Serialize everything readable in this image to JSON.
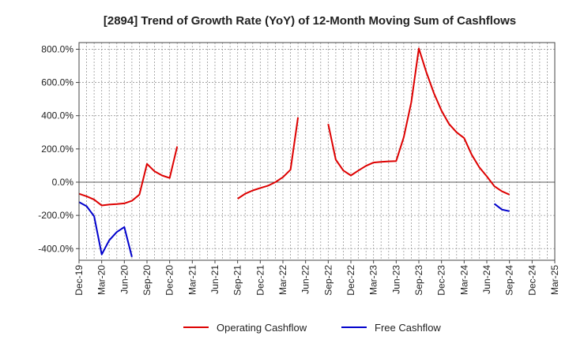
{
  "chart_data": {
    "type": "line",
    "title": "[2894]  Trend of Growth Rate (YoY) of 12-Month Moving Sum of Cashflows",
    "xlabel": "",
    "ylabel": "",
    "ylim": [
      -470,
      840
    ],
    "y_ticks": [
      -400,
      -200,
      0,
      200,
      400,
      600,
      800
    ],
    "y_tick_labels": [
      "-400.0%",
      "-200.0%",
      "0.0%",
      "200.0%",
      "400.0%",
      "600.0%",
      "800.0%"
    ],
    "x_ticks": [
      "Dec-19",
      "Mar-20",
      "Jun-20",
      "Sep-20",
      "Dec-20",
      "Mar-21",
      "Jun-21",
      "Sep-21",
      "Dec-21",
      "Mar-22",
      "Jun-22",
      "Sep-22",
      "Dec-22",
      "Mar-23",
      "Jun-23",
      "Sep-23",
      "Dec-23",
      "Mar-24",
      "Jun-24",
      "Sep-24",
      "Dec-24",
      "Mar-25"
    ],
    "grid": true,
    "legend_position": "bottom",
    "months": [
      "Dec-19",
      "Jan-20",
      "Feb-20",
      "Mar-20",
      "Apr-20",
      "May-20",
      "Jun-20",
      "Jul-20",
      "Aug-20",
      "Sep-20",
      "Oct-20",
      "Nov-20",
      "Dec-20",
      "Jan-21",
      "Feb-21",
      "Mar-21",
      "Apr-21",
      "May-21",
      "Jun-21",
      "Jul-21",
      "Aug-21",
      "Sep-21",
      "Oct-21",
      "Nov-21",
      "Dec-21",
      "Jan-22",
      "Feb-22",
      "Mar-22",
      "Apr-22",
      "May-22",
      "Jun-22",
      "Jul-22",
      "Aug-22",
      "Sep-22",
      "Oct-22",
      "Nov-22",
      "Dec-22",
      "Jan-23",
      "Feb-23",
      "Mar-23",
      "Apr-23",
      "May-23",
      "Jun-23",
      "Jul-23",
      "Aug-23",
      "Sep-23",
      "Oct-23",
      "Nov-23",
      "Dec-23",
      "Jan-24",
      "Feb-24",
      "Mar-24",
      "Apr-24",
      "May-24",
      "Jun-24",
      "Jul-24",
      "Aug-24",
      "Sep-24",
      "Oct-24",
      "Nov-24",
      "Dec-24",
      "Jan-25",
      "Feb-25",
      "Mar-25"
    ],
    "series": [
      {
        "name": "Operating Cashflow",
        "color": "#dd0000",
        "values": [
          -70,
          -85,
          -105,
          -140,
          -135,
          -132,
          -128,
          -112,
          -75,
          110,
          65,
          40,
          25,
          215,
          null,
          null,
          null,
          null,
          null,
          null,
          null,
          -100,
          -70,
          -50,
          -35,
          -22,
          0,
          30,
          75,
          390,
          null,
          null,
          null,
          350,
          135,
          70,
          40,
          70,
          98,
          118,
          122,
          125,
          127,
          270,
          480,
          805,
          660,
          535,
          430,
          350,
          300,
          265,
          165,
          90,
          35,
          -25,
          -55,
          -75,
          null,
          null,
          null,
          null,
          null,
          null
        ]
      },
      {
        "name": "Free Cashflow",
        "color": "#0000cc",
        "values": [
          -120,
          -145,
          -205,
          -435,
          -350,
          -300,
          -270,
          -450,
          null,
          null,
          null,
          null,
          null,
          null,
          null,
          null,
          null,
          null,
          null,
          null,
          null,
          null,
          null,
          null,
          null,
          null,
          null,
          null,
          null,
          null,
          null,
          null,
          null,
          null,
          null,
          null,
          null,
          null,
          null,
          null,
          null,
          null,
          null,
          null,
          null,
          null,
          null,
          null,
          null,
          null,
          null,
          null,
          null,
          null,
          null,
          -130,
          -165,
          -175,
          null,
          null,
          null,
          null,
          null,
          null
        ]
      }
    ]
  }
}
